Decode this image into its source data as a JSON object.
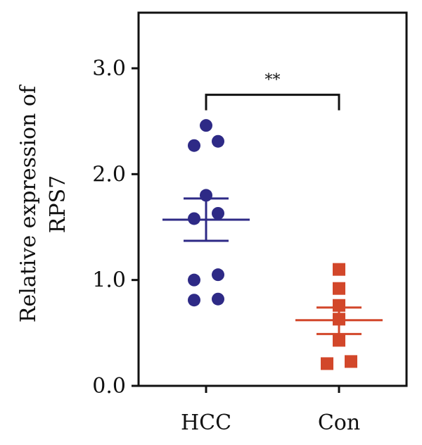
{
  "chart_data": {
    "type": "scatter",
    "ylabel_lines": [
      "Relative expression of",
      "RPS7"
    ],
    "ylim": [
      0,
      3.5
    ],
    "yticks": [
      0.0,
      1.0,
      2.0,
      3.0
    ],
    "ytick_labels": [
      "0.0",
      "1.0",
      "2.0",
      "3.0"
    ],
    "categories": [
      "HCC",
      "Con"
    ],
    "series": [
      {
        "category": "HCC",
        "marker": "circle",
        "color": "#2e2a86",
        "values": [
          2.46,
          2.27,
          2.31,
          1.8,
          1.58,
          1.63,
          1.05,
          1.0,
          0.81,
          0.82
        ],
        "mean": 1.57,
        "sem_low": 1.37,
        "sem_high": 1.77
      },
      {
        "category": "Con",
        "marker": "square",
        "color": "#d2472a",
        "values": [
          1.1,
          0.92,
          0.76,
          0.63,
          0.43,
          0.21,
          0.23
        ],
        "mean": 0.62,
        "sem_low": 0.49,
        "sem_high": 0.74
      }
    ],
    "significance": {
      "label": "**",
      "from": "HCC",
      "to": "Con",
      "y": 2.75
    },
    "grid": false,
    "legend": "none"
  }
}
